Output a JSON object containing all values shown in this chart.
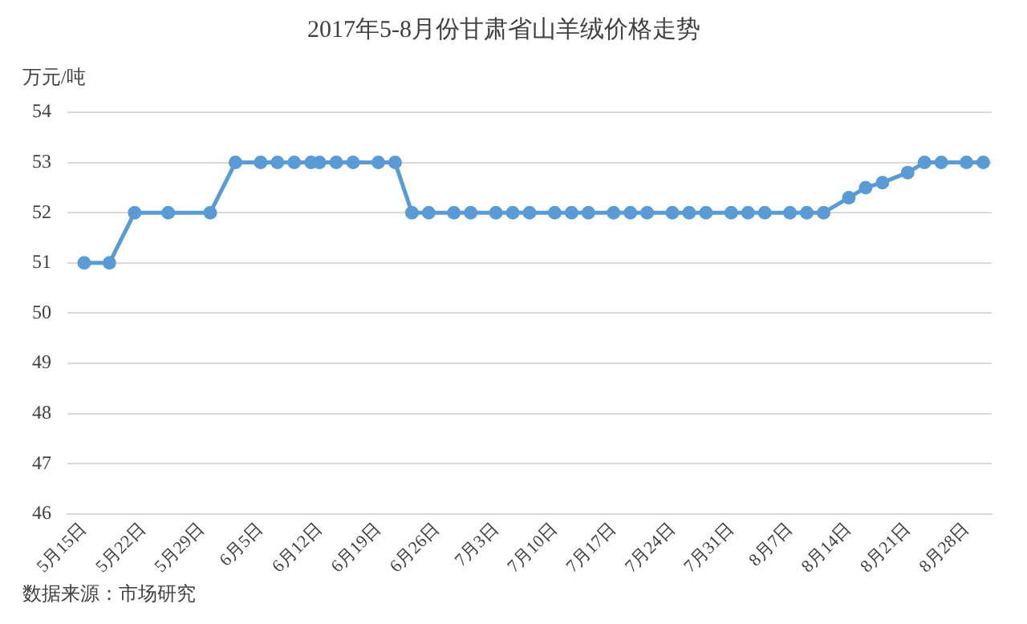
{
  "chart_data": {
    "type": "line",
    "title": "2017年5-8月份甘肃省山羊绒价格走势",
    "ylabel": "万元/吨",
    "annotations": [
      "数据来源：市场研究"
    ],
    "x": [
      "--05-15",
      "--05-18",
      "--05-21",
      "--05-25",
      "--05-30",
      "--06-02",
      "--06-05",
      "--06-07",
      "--06-09",
      "--06-11",
      "--06-12",
      "--06-14",
      "--06-16",
      "--06-19",
      "--06-21",
      "--06-23",
      "--06-25",
      "--06-28",
      "--06-30",
      "--07-03",
      "--07-05",
      "--07-07",
      "--07-10",
      "--07-12",
      "--07-14",
      "--07-17",
      "--07-19",
      "--07-21",
      "--07-24",
      "--07-26",
      "--07-28",
      "--07-31",
      "--08-02",
      "--08-04",
      "--08-07",
      "--08-09",
      "--08-11",
      "--08-14",
      "--08-16",
      "--08-18",
      "--08-21",
      "--08-23",
      "--08-25",
      "--08-28",
      "--08-30"
    ],
    "series": [
      {
        "color": "#5b9bd5",
        "values": [
          51,
          51,
          52,
          52,
          52,
          53,
          53,
          53,
          53,
          53,
          53,
          53,
          53,
          53,
          53,
          52,
          52,
          52,
          52,
          52,
          52,
          52,
          52,
          52,
          52,
          52,
          52,
          52,
          52,
          52,
          52,
          52,
          52,
          52,
          52,
          52,
          52,
          52.3,
          52.5,
          52.6,
          52.8,
          53,
          53,
          53,
          53
        ]
      }
    ],
    "xlim": [
      "--05-13",
      "--08-31"
    ],
    "xticks": [
      {
        "value": "--05-15",
        "label": "5月15日"
      },
      {
        "value": "--05-22",
        "label": "5月22日"
      },
      {
        "value": "--05-29",
        "label": "5月29日"
      },
      {
        "value": "--06-05",
        "label": "6月5日"
      },
      {
        "value": "--06-12",
        "label": "6月12日"
      },
      {
        "value": "--06-19",
        "label": "6月19日"
      },
      {
        "value": "--06-26",
        "label": "6月26日"
      },
      {
        "value": "--07-03",
        "label": "7月3日"
      },
      {
        "value": "--07-10",
        "label": "7月10日"
      },
      {
        "value": "--07-17",
        "label": "7月17日"
      },
      {
        "value": "--07-24",
        "label": "7月24日"
      },
      {
        "value": "--07-31",
        "label": "7月31日"
      },
      {
        "value": "--08-07",
        "label": "8月7日"
      },
      {
        "value": "--08-14",
        "label": "8月14日"
      },
      {
        "value": "--08-21",
        "label": "8月21日"
      },
      {
        "value": "--08-28",
        "label": "8月28日"
      }
    ],
    "ylim": [
      46,
      54
    ],
    "yticks": [
      46,
      47,
      48,
      49,
      50,
      51,
      52,
      53,
      54
    ],
    "grid": "y",
    "legend": false,
    "marker": "circle",
    "line_style": "solid"
  }
}
